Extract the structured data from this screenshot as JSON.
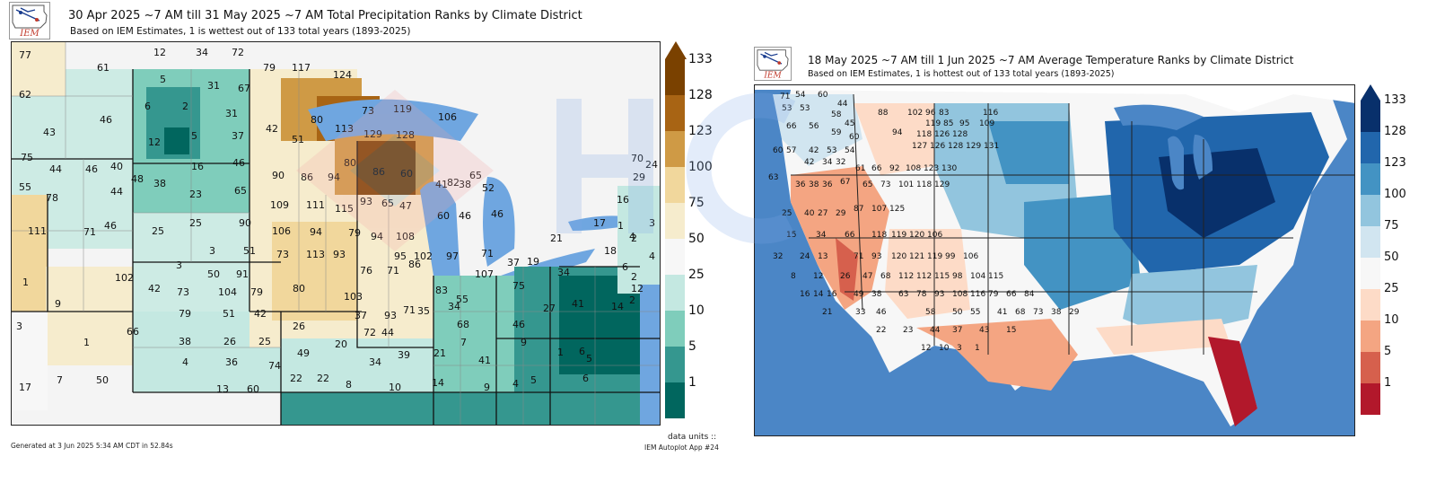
{
  "left": {
    "title": "30 Apr 2025 ~7 AM till 31 May 2025 ~7 AM Total Precipitation Ranks by Climate District",
    "subtitle": "Based on IEM Estimates, 1 is wettest out of 133 total years (1893-2025)",
    "logo_text": "IEM",
    "colorbar_ticks": [
      "133",
      "128",
      "123",
      "100",
      "75",
      "50",
      "25",
      "10",
      "5",
      "1"
    ],
    "colorbar_colors": [
      "#7a4100",
      "#a86414",
      "#cf9a45",
      "#f1d79c",
      "#f6eccd",
      "#f7f7f7",
      "#c4e8e1",
      "#7fcdbb",
      "#35978f",
      "#01665e"
    ],
    "footnote_left": "Generated at 3 Jun 2025 5:34 AM CDT in 52.84s",
    "footnote_right_1": "data units ::",
    "footnote_right_2": "IEM Autoplot App #24",
    "ranks": [
      {
        "v": "77"
      },
      {
        "v": "61"
      },
      {
        "v": "12"
      },
      {
        "v": "34"
      },
      {
        "v": "72"
      },
      {
        "v": "62"
      },
      {
        "v": "5"
      },
      {
        "v": "31"
      },
      {
        "v": "67"
      },
      {
        "v": "79"
      },
      {
        "v": "117"
      },
      {
        "v": "124"
      },
      {
        "v": "6"
      },
      {
        "v": "2"
      },
      {
        "v": "46"
      },
      {
        "v": "31"
      },
      {
        "v": "43"
      },
      {
        "v": "12"
      },
      {
        "v": "5"
      },
      {
        "v": "37"
      },
      {
        "v": "42"
      },
      {
        "v": "51"
      },
      {
        "v": "80"
      },
      {
        "v": "113"
      },
      {
        "v": "129"
      },
      {
        "v": "119"
      },
      {
        "v": "128"
      },
      {
        "v": "106"
      },
      {
        "v": "75"
      },
      {
        "v": "44"
      },
      {
        "v": "46"
      },
      {
        "v": "40"
      },
      {
        "v": "16"
      },
      {
        "v": "46"
      },
      {
        "v": "80"
      },
      {
        "v": "90"
      },
      {
        "v": "86"
      },
      {
        "v": "94"
      },
      {
        "v": "86"
      },
      {
        "v": "60"
      },
      {
        "v": "82"
      },
      {
        "v": "65"
      },
      {
        "v": "70"
      },
      {
        "v": "29"
      },
      {
        "v": "24"
      },
      {
        "v": "48"
      },
      {
        "v": "38"
      },
      {
        "v": "44"
      },
      {
        "v": "55"
      },
      {
        "v": "78"
      },
      {
        "v": "23"
      },
      {
        "v": "65"
      },
      {
        "v": "109"
      },
      {
        "v": "111"
      },
      {
        "v": "115"
      },
      {
        "v": "93"
      },
      {
        "v": "65"
      },
      {
        "v": "47"
      },
      {
        "v": "41"
      },
      {
        "v": "38"
      },
      {
        "v": "52"
      },
      {
        "v": "16"
      },
      {
        "v": "111"
      },
      {
        "v": "71"
      },
      {
        "v": "46"
      },
      {
        "v": "25"
      },
      {
        "v": "25"
      },
      {
        "v": "90"
      },
      {
        "v": "106"
      },
      {
        "v": "94"
      },
      {
        "v": "79"
      },
      {
        "v": "94"
      },
      {
        "v": "108"
      },
      {
        "v": "60"
      },
      {
        "v": "46"
      },
      {
        "v": "46"
      },
      {
        "v": "17"
      },
      {
        "v": "1"
      },
      {
        "v": "4"
      },
      {
        "v": "3"
      },
      {
        "v": "3"
      },
      {
        "v": "51"
      },
      {
        "v": "73"
      },
      {
        "v": "113"
      },
      {
        "v": "93"
      },
      {
        "v": "95"
      },
      {
        "v": "102"
      },
      {
        "v": "97"
      },
      {
        "v": "71"
      },
      {
        "v": "21"
      },
      {
        "v": "18"
      },
      {
        "v": "2"
      },
      {
        "v": "4"
      },
      {
        "v": "3"
      },
      {
        "v": "50"
      },
      {
        "v": "91"
      },
      {
        "v": "76"
      },
      {
        "v": "71"
      },
      {
        "v": "86"
      },
      {
        "v": "107"
      },
      {
        "v": "37"
      },
      {
        "v": "19"
      },
      {
        "v": "34"
      },
      {
        "v": "6"
      },
      {
        "v": "2"
      },
      {
        "v": "1"
      },
      {
        "v": "102"
      },
      {
        "v": "42"
      },
      {
        "v": "73"
      },
      {
        "v": "104"
      },
      {
        "v": "79"
      },
      {
        "v": "80"
      },
      {
        "v": "103"
      },
      {
        "v": "83"
      },
      {
        "v": "55"
      },
      {
        "v": "75"
      },
      {
        "v": "12"
      },
      {
        "v": "9"
      },
      {
        "v": "79"
      },
      {
        "v": "51"
      },
      {
        "v": "42"
      },
      {
        "v": "37"
      },
      {
        "v": "93"
      },
      {
        "v": "71"
      },
      {
        "v": "68"
      },
      {
        "v": "27"
      },
      {
        "v": "14"
      },
      {
        "v": "2"
      },
      {
        "v": "3"
      },
      {
        "v": "66"
      },
      {
        "v": "26"
      },
      {
        "v": "72"
      },
      {
        "v": "44"
      },
      {
        "v": "35"
      },
      {
        "v": "34"
      },
      {
        "v": "46"
      },
      {
        "v": "41"
      },
      {
        "v": "1"
      },
      {
        "v": "38"
      },
      {
        "v": "26"
      },
      {
        "v": "25"
      },
      {
        "v": "49"
      },
      {
        "v": "20"
      },
      {
        "v": "39"
      },
      {
        "v": "21"
      },
      {
        "v": "7"
      },
      {
        "v": "9"
      },
      {
        "v": "1"
      },
      {
        "v": "6"
      },
      {
        "v": "4"
      },
      {
        "v": "36"
      },
      {
        "v": "74"
      },
      {
        "v": "34"
      },
      {
        "v": "41"
      },
      {
        "v": "5"
      },
      {
        "v": "7"
      },
      {
        "v": "50"
      },
      {
        "v": "13"
      },
      {
        "v": "60"
      },
      {
        "v": "22"
      },
      {
        "v": "22"
      },
      {
        "v": "8"
      },
      {
        "v": "10"
      },
      {
        "v": "14"
      },
      {
        "v": "9"
      },
      {
        "v": "4"
      },
      {
        "v": "5"
      },
      {
        "v": "6"
      },
      {
        "v": "17"
      },
      {
        "v": "73"
      }
    ]
  },
  "right": {
    "title": "18 May 2025 ~7 AM till 1 Jun 2025 ~7 AM Average Temperature Ranks by Climate District",
    "subtitle": "Based on IEM Estimates, 1 is hottest out of 133 total years (1893-2025)",
    "logo_text": "IEM",
    "colorbar_ticks": [
      "133",
      "128",
      "123",
      "100",
      "75",
      "50",
      "25",
      "10",
      "5",
      "1"
    ],
    "colorbar_colors": [
      "#08306b",
      "#2166ac",
      "#4393c3",
      "#92c5de",
      "#d1e5f0",
      "#f7f7f7",
      "#fddbc7",
      "#f4a582",
      "#d6604d",
      "#b2182b"
    ],
    "ranks": [
      {
        "v": "71"
      },
      {
        "v": "54"
      },
      {
        "v": "60"
      },
      {
        "v": "44"
      },
      {
        "v": "88"
      },
      {
        "v": "102"
      },
      {
        "v": "96"
      },
      {
        "v": "83"
      },
      {
        "v": "116"
      },
      {
        "v": "53"
      },
      {
        "v": "53"
      },
      {
        "v": "58"
      },
      {
        "v": "45"
      },
      {
        "v": "119"
      },
      {
        "v": "85"
      },
      {
        "v": "95"
      },
      {
        "v": "109"
      },
      {
        "v": "66"
      },
      {
        "v": "56"
      },
      {
        "v": "59"
      },
      {
        "v": "60"
      },
      {
        "v": "94"
      },
      {
        "v": "118"
      },
      {
        "v": "126"
      },
      {
        "v": "128"
      },
      {
        "v": "60"
      },
      {
        "v": "57"
      },
      {
        "v": "42"
      },
      {
        "v": "53"
      },
      {
        "v": "54"
      },
      {
        "v": "127"
      },
      {
        "v": "126"
      },
      {
        "v": "128"
      },
      {
        "v": "129"
      },
      {
        "v": "131"
      },
      {
        "v": "42"
      },
      {
        "v": "34"
      },
      {
        "v": "32"
      },
      {
        "v": "61"
      },
      {
        "v": "66"
      },
      {
        "v": "92"
      },
      {
        "v": "108"
      },
      {
        "v": "123"
      },
      {
        "v": "130"
      },
      {
        "v": "63"
      },
      {
        "v": "36"
      },
      {
        "v": "38"
      },
      {
        "v": "36"
      },
      {
        "v": "67"
      },
      {
        "v": "65"
      },
      {
        "v": "73"
      },
      {
        "v": "101"
      },
      {
        "v": "118"
      },
      {
        "v": "129"
      },
      {
        "v": "25"
      },
      {
        "v": "40"
      },
      {
        "v": "27"
      },
      {
        "v": "29"
      },
      {
        "v": "87"
      },
      {
        "v": "107"
      },
      {
        "v": "125"
      },
      {
        "v": "15"
      },
      {
        "v": "34"
      },
      {
        "v": "66"
      },
      {
        "v": "118"
      },
      {
        "v": "119"
      },
      {
        "v": "120"
      },
      {
        "v": "106"
      },
      {
        "v": "32"
      },
      {
        "v": "24"
      },
      {
        "v": "13"
      },
      {
        "v": "71"
      },
      {
        "v": "93"
      },
      {
        "v": "120"
      },
      {
        "v": "121"
      },
      {
        "v": "119"
      },
      {
        "v": "99"
      },
      {
        "v": "106"
      },
      {
        "v": "8"
      },
      {
        "v": "12"
      },
      {
        "v": "26"
      },
      {
        "v": "47"
      },
      {
        "v": "68"
      },
      {
        "v": "112"
      },
      {
        "v": "112"
      },
      {
        "v": "115"
      },
      {
        "v": "98"
      },
      {
        "v": "104"
      },
      {
        "v": "115"
      },
      {
        "v": "16"
      },
      {
        "v": "14"
      },
      {
        "v": "16"
      },
      {
        "v": "49"
      },
      {
        "v": "38"
      },
      {
        "v": "63"
      },
      {
        "v": "78"
      },
      {
        "v": "93"
      },
      {
        "v": "108"
      },
      {
        "v": "116"
      },
      {
        "v": "79"
      },
      {
        "v": "66"
      },
      {
        "v": "84"
      },
      {
        "v": "21"
      },
      {
        "v": "33"
      },
      {
        "v": "46"
      },
      {
        "v": "58"
      },
      {
        "v": "50"
      },
      {
        "v": "55"
      },
      {
        "v": "41"
      },
      {
        "v": "68"
      },
      {
        "v": "73"
      },
      {
        "v": "38"
      },
      {
        "v": "29"
      },
      {
        "v": "22"
      },
      {
        "v": "23"
      },
      {
        "v": "44"
      },
      {
        "v": "37"
      },
      {
        "v": "43"
      },
      {
        "v": "15"
      },
      {
        "v": "12"
      },
      {
        "v": "10"
      },
      {
        "v": "3"
      },
      {
        "v": "1"
      }
    ]
  }
}
